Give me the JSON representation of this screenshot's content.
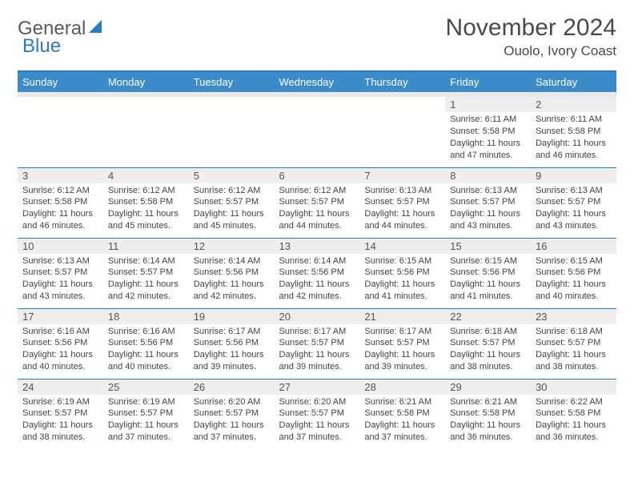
{
  "brand": {
    "word1": "General",
    "word2": "Blue"
  },
  "title": "November 2024",
  "location": "Ouolo, Ivory Coast",
  "colors": {
    "header_bg": "#3b8bc9",
    "border": "#2b7bbf",
    "daynum_bg": "#eeeeee",
    "spacer_bg": "#e8e8e8",
    "text": "#444444"
  },
  "dow": [
    "Sunday",
    "Monday",
    "Tuesday",
    "Wednesday",
    "Thursday",
    "Friday",
    "Saturday"
  ],
  "weeks": [
    [
      {
        "n": "",
        "sr": "",
        "ss": "",
        "dl": ""
      },
      {
        "n": "",
        "sr": "",
        "ss": "",
        "dl": ""
      },
      {
        "n": "",
        "sr": "",
        "ss": "",
        "dl": ""
      },
      {
        "n": "",
        "sr": "",
        "ss": "",
        "dl": ""
      },
      {
        "n": "",
        "sr": "",
        "ss": "",
        "dl": ""
      },
      {
        "n": "1",
        "sr": "Sunrise: 6:11 AM",
        "ss": "Sunset: 5:58 PM",
        "dl": "Daylight: 11 hours and 47 minutes."
      },
      {
        "n": "2",
        "sr": "Sunrise: 6:11 AM",
        "ss": "Sunset: 5:58 PM",
        "dl": "Daylight: 11 hours and 46 minutes."
      }
    ],
    [
      {
        "n": "3",
        "sr": "Sunrise: 6:12 AM",
        "ss": "Sunset: 5:58 PM",
        "dl": "Daylight: 11 hours and 46 minutes."
      },
      {
        "n": "4",
        "sr": "Sunrise: 6:12 AM",
        "ss": "Sunset: 5:58 PM",
        "dl": "Daylight: 11 hours and 45 minutes."
      },
      {
        "n": "5",
        "sr": "Sunrise: 6:12 AM",
        "ss": "Sunset: 5:57 PM",
        "dl": "Daylight: 11 hours and 45 minutes."
      },
      {
        "n": "6",
        "sr": "Sunrise: 6:12 AM",
        "ss": "Sunset: 5:57 PM",
        "dl": "Daylight: 11 hours and 44 minutes."
      },
      {
        "n": "7",
        "sr": "Sunrise: 6:13 AM",
        "ss": "Sunset: 5:57 PM",
        "dl": "Daylight: 11 hours and 44 minutes."
      },
      {
        "n": "8",
        "sr": "Sunrise: 6:13 AM",
        "ss": "Sunset: 5:57 PM",
        "dl": "Daylight: 11 hours and 43 minutes."
      },
      {
        "n": "9",
        "sr": "Sunrise: 6:13 AM",
        "ss": "Sunset: 5:57 PM",
        "dl": "Daylight: 11 hours and 43 minutes."
      }
    ],
    [
      {
        "n": "10",
        "sr": "Sunrise: 6:13 AM",
        "ss": "Sunset: 5:57 PM",
        "dl": "Daylight: 11 hours and 43 minutes."
      },
      {
        "n": "11",
        "sr": "Sunrise: 6:14 AM",
        "ss": "Sunset: 5:57 PM",
        "dl": "Daylight: 11 hours and 42 minutes."
      },
      {
        "n": "12",
        "sr": "Sunrise: 6:14 AM",
        "ss": "Sunset: 5:56 PM",
        "dl": "Daylight: 11 hours and 42 minutes."
      },
      {
        "n": "13",
        "sr": "Sunrise: 6:14 AM",
        "ss": "Sunset: 5:56 PM",
        "dl": "Daylight: 11 hours and 42 minutes."
      },
      {
        "n": "14",
        "sr": "Sunrise: 6:15 AM",
        "ss": "Sunset: 5:56 PM",
        "dl": "Daylight: 11 hours and 41 minutes."
      },
      {
        "n": "15",
        "sr": "Sunrise: 6:15 AM",
        "ss": "Sunset: 5:56 PM",
        "dl": "Daylight: 11 hours and 41 minutes."
      },
      {
        "n": "16",
        "sr": "Sunrise: 6:15 AM",
        "ss": "Sunset: 5:56 PM",
        "dl": "Daylight: 11 hours and 40 minutes."
      }
    ],
    [
      {
        "n": "17",
        "sr": "Sunrise: 6:16 AM",
        "ss": "Sunset: 5:56 PM",
        "dl": "Daylight: 11 hours and 40 minutes."
      },
      {
        "n": "18",
        "sr": "Sunrise: 6:16 AM",
        "ss": "Sunset: 5:56 PM",
        "dl": "Daylight: 11 hours and 40 minutes."
      },
      {
        "n": "19",
        "sr": "Sunrise: 6:17 AM",
        "ss": "Sunset: 5:56 PM",
        "dl": "Daylight: 11 hours and 39 minutes."
      },
      {
        "n": "20",
        "sr": "Sunrise: 6:17 AM",
        "ss": "Sunset: 5:57 PM",
        "dl": "Daylight: 11 hours and 39 minutes."
      },
      {
        "n": "21",
        "sr": "Sunrise: 6:17 AM",
        "ss": "Sunset: 5:57 PM",
        "dl": "Daylight: 11 hours and 39 minutes."
      },
      {
        "n": "22",
        "sr": "Sunrise: 6:18 AM",
        "ss": "Sunset: 5:57 PM",
        "dl": "Daylight: 11 hours and 38 minutes."
      },
      {
        "n": "23",
        "sr": "Sunrise: 6:18 AM",
        "ss": "Sunset: 5:57 PM",
        "dl": "Daylight: 11 hours and 38 minutes."
      }
    ],
    [
      {
        "n": "24",
        "sr": "Sunrise: 6:19 AM",
        "ss": "Sunset: 5:57 PM",
        "dl": "Daylight: 11 hours and 38 minutes."
      },
      {
        "n": "25",
        "sr": "Sunrise: 6:19 AM",
        "ss": "Sunset: 5:57 PM",
        "dl": "Daylight: 11 hours and 37 minutes."
      },
      {
        "n": "26",
        "sr": "Sunrise: 6:20 AM",
        "ss": "Sunset: 5:57 PM",
        "dl": "Daylight: 11 hours and 37 minutes."
      },
      {
        "n": "27",
        "sr": "Sunrise: 6:20 AM",
        "ss": "Sunset: 5:57 PM",
        "dl": "Daylight: 11 hours and 37 minutes."
      },
      {
        "n": "28",
        "sr": "Sunrise: 6:21 AM",
        "ss": "Sunset: 5:58 PM",
        "dl": "Daylight: 11 hours and 37 minutes."
      },
      {
        "n": "29",
        "sr": "Sunrise: 6:21 AM",
        "ss": "Sunset: 5:58 PM",
        "dl": "Daylight: 11 hours and 36 minutes."
      },
      {
        "n": "30",
        "sr": "Sunrise: 6:22 AM",
        "ss": "Sunset: 5:58 PM",
        "dl": "Daylight: 11 hours and 36 minutes."
      }
    ]
  ]
}
